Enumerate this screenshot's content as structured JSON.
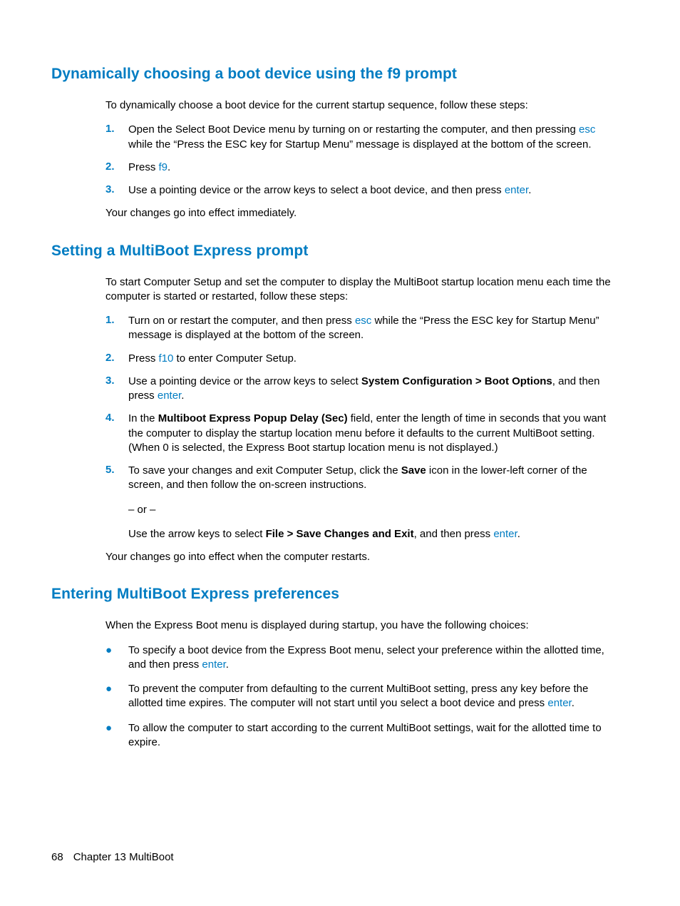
{
  "colors": {
    "heading": "#007cc2",
    "keyword": "#007cc2",
    "number": "#007cc2",
    "bullet": "#007cc2",
    "text": "#000000",
    "background": "#ffffff"
  },
  "typography": {
    "heading_fontsize": 21,
    "body_fontsize": 15,
    "font_family": "Arial"
  },
  "section1": {
    "title": "Dynamically choosing a boot device using the f9 prompt",
    "intro": "To dynamically choose a boot device for the current startup sequence, follow these steps:",
    "steps": {
      "n1": "1.",
      "s1a": "Open the Select Boot Device menu by turning on or restarting the computer, and then pressing ",
      "s1kw": "esc",
      "s1b": " while the “Press the ESC key for Startup Menu” message is displayed at the bottom of the screen.",
      "n2": "2.",
      "s2a": "Press ",
      "s2kw": "f9",
      "s2b": ".",
      "n3": "3.",
      "s3a": "Use a pointing device or the arrow keys to select a boot device, and then press ",
      "s3kw": "enter",
      "s3b": "."
    },
    "post": "Your changes go into effect immediately."
  },
  "section2": {
    "title": "Setting a MultiBoot Express prompt",
    "intro": "To start Computer Setup and set the computer to display the MultiBoot startup location menu each time the computer is started or restarted, follow these steps:",
    "steps": {
      "n1": "1.",
      "s1a": "Turn on or restart the computer, and then press ",
      "s1kw": "esc",
      "s1b": " while the “Press the ESC key for Startup Menu” message is displayed at the bottom of the screen.",
      "n2": "2.",
      "s2a": "Press ",
      "s2kw": "f10",
      "s2b": " to enter Computer Setup.",
      "n3": "3.",
      "s3a": "Use a pointing device or the arrow keys to select ",
      "s3bold": "System Configuration > Boot Options",
      "s3b": ", and then press ",
      "s3kw": "enter",
      "s3c": ".",
      "n4": "4.",
      "s4a": "In the ",
      "s4bold": "Multiboot Express Popup Delay (Sec)",
      "s4b": " field, enter the length of time in seconds that you want the computer to display the startup location menu before it defaults to the current MultiBoot setting. (When 0 is selected, the Express Boot startup location menu is not displayed.)",
      "n5": "5.",
      "s5a": "To save your changes and exit Computer Setup, click the ",
      "s5bold": "Save",
      "s5b": " icon in the lower-left corner of the screen, and then follow the on-screen instructions.",
      "s5or": "– or –",
      "s5c": "Use the arrow keys to select ",
      "s5bold2": "File > Save Changes and Exit",
      "s5d": ", and then press ",
      "s5kw": "enter",
      "s5e": "."
    },
    "post": "Your changes go into effect when the computer restarts."
  },
  "section3": {
    "title": "Entering MultiBoot Express preferences",
    "intro": "When the Express Boot menu is displayed during startup, you have the following choices:",
    "bullets": {
      "dot": "●",
      "b1a": "To specify a boot device from the Express Boot menu, select your preference within the allotted time, and then press ",
      "b1kw": "enter",
      "b1b": ".",
      "b2a": "To prevent the computer from defaulting to the current MultiBoot setting, press any key before the allotted time expires. The computer will not start until you select a boot device and press ",
      "b2kw": "enter",
      "b2b": ".",
      "b3": "To allow the computer to start according to the current MultiBoot settings, wait for the allotted time to expire."
    }
  },
  "footer": {
    "page_number": "68",
    "chapter": "Chapter 13   MultiBoot"
  }
}
